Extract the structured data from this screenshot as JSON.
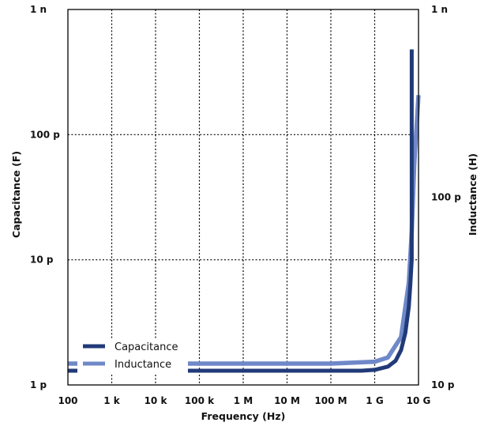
{
  "chart_data": {
    "type": "line",
    "xlabel": "Frequency (Hz)",
    "ylabel_left": "Capacitance (F)",
    "ylabel_right": "Inductance (H)",
    "x_scale": "log",
    "y_scale": "log",
    "xlim": [
      100,
      10000000000
    ],
    "ylim_left": [
      1e-12,
      1e-09
    ],
    "ylim_right": [
      1e-11,
      1e-09
    ],
    "x_ticks": [
      {
        "value": 100,
        "label": "100"
      },
      {
        "value": 1000,
        "label": "1 k"
      },
      {
        "value": 10000,
        "label": "10 k"
      },
      {
        "value": 100000,
        "label": "100 k"
      },
      {
        "value": 1000000,
        "label": "1 M"
      },
      {
        "value": 10000000,
        "label": "10 M"
      },
      {
        "value": 100000000,
        "label": "100 M"
      },
      {
        "value": 1000000000,
        "label": "1 G"
      },
      {
        "value": 10000000000,
        "label": "10 G"
      }
    ],
    "y_ticks_left": [
      {
        "value": 1e-12,
        "label": "1 p"
      },
      {
        "value": 1e-11,
        "label": "10 p"
      },
      {
        "value": 1e-10,
        "label": "100 p"
      },
      {
        "value": 1e-09,
        "label": "1 n"
      }
    ],
    "y_ticks_right": [
      {
        "value": 1e-11,
        "label": "10 p"
      },
      {
        "value": 1e-10,
        "label": "100 p"
      },
      {
        "value": 1e-09,
        "label": "1 n"
      }
    ],
    "grid": true,
    "legend_position": "bottom-left",
    "series": [
      {
        "name": "Capacitance",
        "axis": "left",
        "color": "#213a78",
        "x": [
          100,
          1000,
          10000,
          100000,
          1000000,
          10000000,
          100000000,
          500000000,
          1000000000,
          2000000000,
          3000000000,
          4000000000,
          5000000000,
          6000000000,
          6500000000,
          7000000000,
          7000000000
        ],
        "y": [
          1.3e-12,
          1.3e-12,
          1.3e-12,
          1.3e-12,
          1.3e-12,
          1.3e-12,
          1.3e-12,
          1.3e-12,
          1.32e-12,
          1.4e-12,
          1.56e-12,
          1.9e-12,
          2.6e-12,
          4.2e-12,
          6.3e-12,
          1e-11,
          4.8e-10
        ]
      },
      {
        "name": "Inductance",
        "axis": "right",
        "color": "#6f88c8",
        "x": [
          100,
          1000,
          10000,
          100000,
          1000000,
          10000000,
          100000000,
          1000000000,
          2000000000,
          4000000000,
          6000000000,
          7000000000,
          8000000000,
          10000000000
        ],
        "y": [
          1.3e-11,
          1.3e-11,
          1.3e-11,
          1.3e-11,
          1.3e-11,
          1.3e-11,
          1.3e-11,
          1.33e-11,
          1.4e-11,
          1.8e-11,
          3.5e-11,
          6.5e-11,
          1.5e-10,
          3.5e-10
        ]
      }
    ]
  }
}
